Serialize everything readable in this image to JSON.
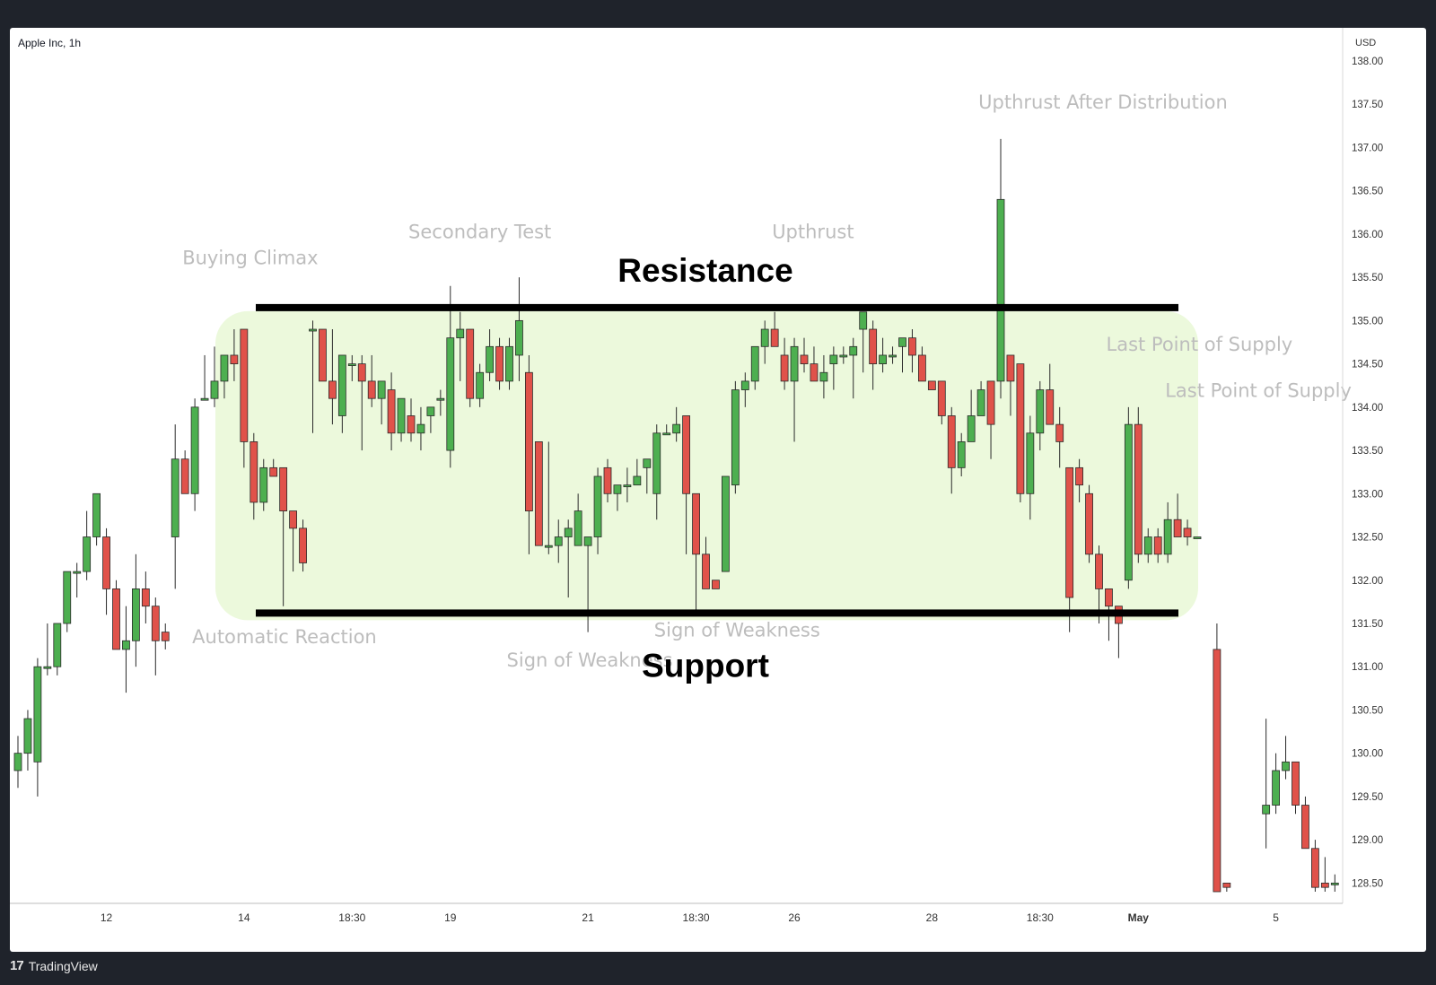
{
  "header": {
    "symbol_label": "Apple Inc, 1h",
    "currency": "USD"
  },
  "branding": {
    "logo_glyph": "17",
    "name": "TradingView"
  },
  "colors": {
    "up": "#4daf50",
    "down": "#e0524a",
    "range_fill": "#ecf9dc",
    "level_line": "#000000",
    "annotation": "#bdbdbd",
    "axis_text": "#333333"
  },
  "chart_data": {
    "type": "candlestick",
    "title": "Apple Inc, 1h",
    "xlabel": "",
    "ylabel": "",
    "ylim": [
      128.4,
      138.0
    ],
    "grid": false,
    "y_ticks": [
      128.5,
      129.0,
      129.5,
      130.0,
      130.5,
      131.0,
      131.5,
      132.0,
      132.5,
      133.0,
      133.5,
      134.0,
      134.5,
      135.0,
      135.5,
      136.0,
      136.5,
      137.0,
      137.5,
      138.0
    ],
    "x_ticks": [
      {
        "label": "12",
        "bar": 9
      },
      {
        "label": "14",
        "bar": 23
      },
      {
        "label": "18:30",
        "bar": 34
      },
      {
        "label": "19",
        "bar": 44
      },
      {
        "label": "21",
        "bar": 58
      },
      {
        "label": "18:30",
        "bar": 69
      },
      {
        "label": "26",
        "bar": 79
      },
      {
        "label": "28",
        "bar": 93
      },
      {
        "label": "18:30",
        "bar": 104
      },
      {
        "label": "May",
        "bar": 114
      },
      {
        "label": "5",
        "bar": 128
      }
    ],
    "candles": [
      [
        129.8,
        130.2,
        129.6,
        130.0
      ],
      [
        130.0,
        130.5,
        129.8,
        130.4
      ],
      [
        129.9,
        131.1,
        129.5,
        131.0
      ],
      [
        131.0,
        131.5,
        130.9,
        131.0
      ],
      [
        131.0,
        131.5,
        130.9,
        131.5
      ],
      [
        131.5,
        132.1,
        131.4,
        132.1
      ],
      [
        132.1,
        132.2,
        131.8,
        132.1
      ],
      [
        132.1,
        132.8,
        132.0,
        132.5
      ],
      [
        132.5,
        133.0,
        132.4,
        133.0
      ],
      [
        132.5,
        132.6,
        131.6,
        131.9
      ],
      [
        131.9,
        132.0,
        131.2,
        131.2
      ],
      [
        131.2,
        131.7,
        130.7,
        131.3
      ],
      [
        131.3,
        132.3,
        131.0,
        131.9
      ],
      [
        131.9,
        132.1,
        131.5,
        131.7
      ],
      [
        131.7,
        131.8,
        130.9,
        131.3
      ],
      [
        131.4,
        131.5,
        131.2,
        131.3
      ],
      [
        132.5,
        133.8,
        131.9,
        133.4
      ],
      [
        133.4,
        133.5,
        133.0,
        133.0
      ],
      [
        133.0,
        134.1,
        132.8,
        134.0
      ],
      [
        134.1,
        134.6,
        134.1,
        134.1
      ],
      [
        134.1,
        134.7,
        134.0,
        134.3
      ],
      [
        134.3,
        134.6,
        134.1,
        134.6
      ],
      [
        134.6,
        134.9,
        134.3,
        134.5
      ],
      [
        134.9,
        134.9,
        133.3,
        133.6
      ],
      [
        133.6,
        133.7,
        132.7,
        132.9
      ],
      [
        132.9,
        133.4,
        132.8,
        133.3
      ],
      [
        133.3,
        133.4,
        133.2,
        133.2
      ],
      [
        133.3,
        133.3,
        131.7,
        132.8
      ],
      [
        132.8,
        132.8,
        132.1,
        132.6
      ],
      [
        132.6,
        132.7,
        132.1,
        132.2
      ],
      [
        134.9,
        135.0,
        133.7,
        134.9
      ],
      [
        134.9,
        134.9,
        134.3,
        134.3
      ],
      [
        134.3,
        134.9,
        133.8,
        134.1
      ],
      [
        133.9,
        134.6,
        133.7,
        134.6
      ],
      [
        134.5,
        134.6,
        134.3,
        134.5
      ],
      [
        134.5,
        134.6,
        133.5,
        134.3
      ],
      [
        134.3,
        134.6,
        134.0,
        134.1
      ],
      [
        134.1,
        134.3,
        133.8,
        134.3
      ],
      [
        134.2,
        134.4,
        133.5,
        133.7
      ],
      [
        133.7,
        134.1,
        133.6,
        134.1
      ],
      [
        133.9,
        134.1,
        133.6,
        133.7
      ],
      [
        133.7,
        134.0,
        133.5,
        133.8
      ],
      [
        133.9,
        134.0,
        133.7,
        134.0
      ],
      [
        134.1,
        134.2,
        133.9,
        134.1
      ],
      [
        133.5,
        135.4,
        133.3,
        134.8
      ],
      [
        134.8,
        135.1,
        134.3,
        134.9
      ],
      [
        134.9,
        134.9,
        134.0,
        134.1
      ],
      [
        134.1,
        134.5,
        134.0,
        134.4
      ],
      [
        134.4,
        134.9,
        134.3,
        134.7
      ],
      [
        134.7,
        134.8,
        134.2,
        134.3
      ],
      [
        134.3,
        134.8,
        134.2,
        134.7
      ],
      [
        134.6,
        135.5,
        134.3,
        135.0
      ],
      [
        134.4,
        134.6,
        132.3,
        132.8
      ],
      [
        133.6,
        133.6,
        132.4,
        132.4
      ],
      [
        132.4,
        133.6,
        132.3,
        132.4
      ],
      [
        132.4,
        132.7,
        132.2,
        132.5
      ],
      [
        132.5,
        132.7,
        131.8,
        132.6
      ],
      [
        132.4,
        133.0,
        132.4,
        132.8
      ],
      [
        132.4,
        132.5,
        131.4,
        132.5
      ],
      [
        132.5,
        133.3,
        132.3,
        133.2
      ],
      [
        133.3,
        133.4,
        132.9,
        133.0
      ],
      [
        133.0,
        133.1,
        132.8,
        133.1
      ],
      [
        133.1,
        133.3,
        132.9,
        133.1
      ],
      [
        133.1,
        133.4,
        133.1,
        133.2
      ],
      [
        133.3,
        133.4,
        133.0,
        133.4
      ],
      [
        133.0,
        133.8,
        132.7,
        133.7
      ],
      [
        133.7,
        133.8,
        133.7,
        133.7
      ],
      [
        133.7,
        134.0,
        133.6,
        133.8
      ],
      [
        133.9,
        133.9,
        132.3,
        133.0
      ],
      [
        133.0,
        133.0,
        131.6,
        132.3
      ],
      [
        132.3,
        132.5,
        131.9,
        131.9
      ],
      [
        132.0,
        132.0,
        131.9,
        131.9
      ],
      [
        132.1,
        133.1,
        132.1,
        133.2
      ],
      [
        133.1,
        134.3,
        133.0,
        134.2
      ],
      [
        134.2,
        134.4,
        134.0,
        134.3
      ],
      [
        134.3,
        134.7,
        134.2,
        134.7
      ],
      [
        134.7,
        135.0,
        134.5,
        134.9
      ],
      [
        134.9,
        135.1,
        134.7,
        134.7
      ],
      [
        134.6,
        134.8,
        134.2,
        134.3
      ],
      [
        134.3,
        134.8,
        133.6,
        134.7
      ],
      [
        134.6,
        134.8,
        134.4,
        134.5
      ],
      [
        134.5,
        134.7,
        134.3,
        134.3
      ],
      [
        134.3,
        134.6,
        134.1,
        134.4
      ],
      [
        134.5,
        134.7,
        134.2,
        134.6
      ],
      [
        134.6,
        134.7,
        134.5,
        134.6
      ],
      [
        134.6,
        134.8,
        134.1,
        134.7
      ],
      [
        134.9,
        135.1,
        134.4,
        135.1
      ],
      [
        134.9,
        135.0,
        134.2,
        134.5
      ],
      [
        134.5,
        134.8,
        134.4,
        134.6
      ],
      [
        134.6,
        134.7,
        134.5,
        134.6
      ],
      [
        134.7,
        134.7,
        134.4,
        134.8
      ],
      [
        134.8,
        134.9,
        134.4,
        134.6
      ],
      [
        134.6,
        134.7,
        134.3,
        134.3
      ],
      [
        134.3,
        134.3,
        134.3,
        134.2
      ],
      [
        134.3,
        134.3,
        133.8,
        133.9
      ],
      [
        133.9,
        134.0,
        133.0,
        133.3
      ],
      [
        133.3,
        133.7,
        133.2,
        133.6
      ],
      [
        133.6,
        134.2,
        133.6,
        133.9
      ],
      [
        133.9,
        134.3,
        133.9,
        134.2
      ],
      [
        134.3,
        134.3,
        133.4,
        133.8
      ],
      [
        134.3,
        137.1,
        134.1,
        136.4
      ],
      [
        134.6,
        134.6,
        133.9,
        134.3
      ],
      [
        134.5,
        134.5,
        132.9,
        133.0
      ],
      [
        133.0,
        133.9,
        132.7,
        133.7
      ],
      [
        133.7,
        134.3,
        133.5,
        134.2
      ],
      [
        134.2,
        134.5,
        133.8,
        133.8
      ],
      [
        133.8,
        134.0,
        133.3,
        133.6
      ],
      [
        133.3,
        133.3,
        131.4,
        131.8
      ],
      [
        133.3,
        133.4,
        132.9,
        133.1
      ],
      [
        133.0,
        133.1,
        132.2,
        132.3
      ],
      [
        132.3,
        132.4,
        131.5,
        131.9
      ],
      [
        131.9,
        131.9,
        131.3,
        131.7
      ],
      [
        131.7,
        131.7,
        131.1,
        131.5
      ],
      [
        132.0,
        134.0,
        131.9,
        133.8
      ],
      [
        133.8,
        134.0,
        132.2,
        132.3
      ],
      [
        132.3,
        132.6,
        132.2,
        132.5
      ],
      [
        132.5,
        132.6,
        132.2,
        132.3
      ],
      [
        132.3,
        132.9,
        132.2,
        132.7
      ],
      [
        132.7,
        133.0,
        132.6,
        132.5
      ],
      [
        132.6,
        132.7,
        132.4,
        132.5
      ],
      [
        132.5,
        132.5,
        132.5,
        132.5
      ],
      [
        null,
        null,
        null,
        null
      ],
      [
        131.2,
        131.5,
        128.4,
        128.4
      ],
      [
        128.5,
        128.5,
        128.4,
        128.45
      ],
      [
        null,
        null,
        null,
        null
      ],
      [
        null,
        null,
        null,
        null
      ],
      [
        null,
        null,
        null,
        null
      ],
      [
        129.3,
        130.4,
        128.9,
        129.4
      ],
      [
        129.4,
        130.0,
        129.3,
        129.8
      ],
      [
        129.8,
        130.2,
        129.7,
        129.9
      ],
      [
        129.9,
        129.9,
        129.3,
        129.4
      ],
      [
        129.4,
        129.5,
        128.9,
        128.9
      ],
      [
        128.9,
        129.0,
        128.4,
        128.45
      ],
      [
        128.5,
        128.8,
        128.4,
        128.45
      ],
      [
        128.5,
        128.6,
        128.4,
        128.5
      ]
    ],
    "levels": [
      {
        "label": "Resistance",
        "price": 135.15
      },
      {
        "label": "Support",
        "price": 131.62
      }
    ],
    "annotations": [
      {
        "text": "Buying Climax",
        "price": 135.65,
        "bar": 16
      },
      {
        "text": "Secondary Test",
        "price": 135.95,
        "bar": 39
      },
      {
        "text": "Upthrust",
        "price": 135.95,
        "bar": 76
      },
      {
        "text": "Upthrust After Distribution",
        "price": 137.45,
        "bar": 97
      },
      {
        "text": "Last Point of Supply",
        "price": 134.65,
        "bar": 110
      },
      {
        "text": "Last Point of Supply",
        "price": 134.12,
        "bar": 116
      },
      {
        "text": "Automatic Reaction",
        "price": 131.27,
        "bar": 17
      },
      {
        "text": "Sign of Weakness",
        "price": 131.35,
        "bar": 64
      },
      {
        "text": "Sign of Weakness",
        "price": 131.0,
        "bar": 49
      }
    ]
  }
}
